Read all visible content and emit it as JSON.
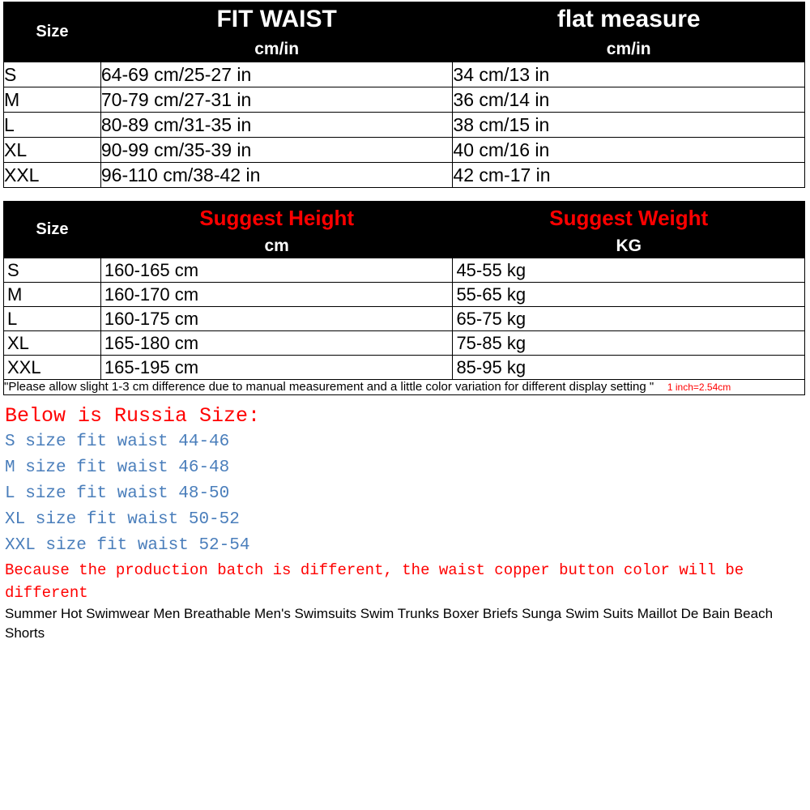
{
  "table1": {
    "size_label": "Size",
    "col1_title": "FIT WAIST",
    "col2_title": "flat measure",
    "unit_label": "cm/in",
    "rows": [
      {
        "size": "S",
        "waist": "64-69 cm/25-27 in",
        "flat": "34 cm/13 in"
      },
      {
        "size": "M",
        "waist": "70-79 cm/27-31 in",
        "flat": "36 cm/14 in"
      },
      {
        "size": "L",
        "waist": "80-89 cm/31-35 in",
        "flat": "38 cm/15 in"
      },
      {
        "size": "XL",
        "waist": "90-99 cm/35-39 in",
        "flat": "40 cm/16 in"
      },
      {
        "size": "XXL",
        "waist": "96-110 cm/38-42 in",
        "flat": "42 cm-17 in"
      }
    ]
  },
  "table2": {
    "size_label": "Size",
    "col1_title": "Suggest Height",
    "col2_title": "Suggest Weight",
    "unit1": "cm",
    "unit2": "KG",
    "rows": [
      {
        "size": "S",
        "height": "160-165 cm",
        "weight": "45-55 kg"
      },
      {
        "size": "M",
        "height": "160-170 cm",
        "weight": "55-65 kg"
      },
      {
        "size": "L",
        "height": "160-175 cm",
        "weight": "65-75 kg"
      },
      {
        "size": "XL",
        "height": "165-180 cm",
        "weight": "75-85 kg"
      },
      {
        "size": "XXL",
        "height": "165-195 cm",
        "weight": "85-95 kg"
      }
    ],
    "note_black": "\"Please allow slight 1-3 cm difference due to manual measurement and a little color variation for different display setting \"",
    "note_red": "1 inch=2.54cm"
  },
  "russia": {
    "title": "Below is Russia Size:",
    "lines": [
      "S size fit waist 44-46",
      "M size fit waist 46-48",
      "L size fit waist 48-50",
      "XL size fit waist 50-52",
      "XXL size fit waist 52-54"
    ],
    "warn": "Because the production batch is different, the waist copper button color will be different",
    "desc": "Summer Hot Swimwear Men Breathable Men's Swimsuits Swim Trunks Boxer Briefs Sunga Swim Suits Maillot De Bain Beach Shorts"
  },
  "colors": {
    "black": "#000000",
    "white": "#ffffff",
    "red": "#ff0000",
    "blue": "#4a7ebb"
  }
}
